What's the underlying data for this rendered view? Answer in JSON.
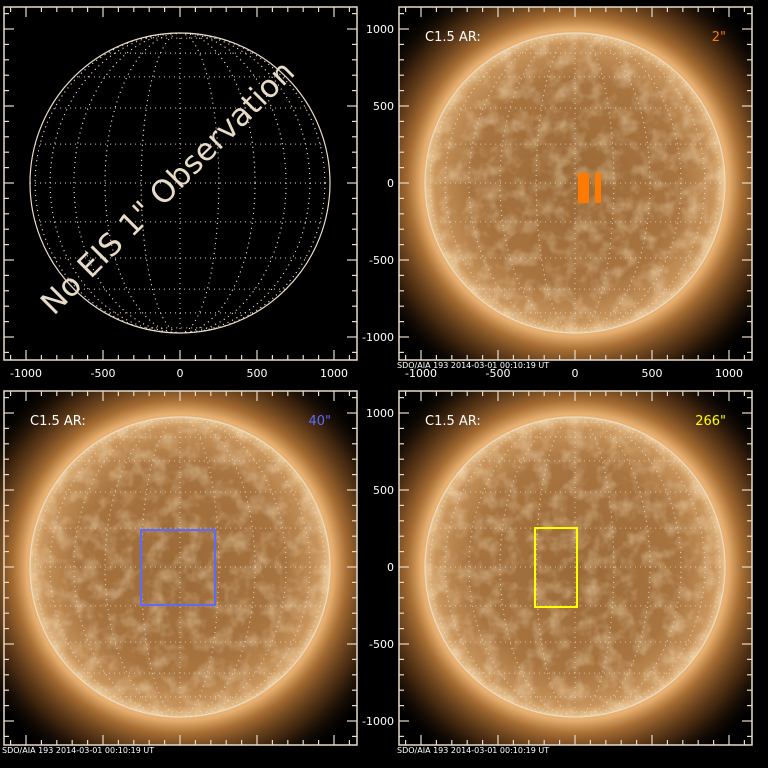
{
  "figure": {
    "frame_color": "#e8dcc8",
    "axis": {
      "x_ticks": [
        -1000,
        -500,
        0,
        500,
        1000
      ],
      "y_ticks": [
        1000,
        500,
        0,
        -500,
        -1000
      ],
      "minor_step": 100
    },
    "panels": [
      {
        "id": "top-left",
        "has_image": false,
        "overlay_text": "No EIS 1\" Observation",
        "show_x_labels": true,
        "show_y_labels": false
      },
      {
        "id": "top-right",
        "has_image": true,
        "label": "C1.5 AR:",
        "resolution": "2\"",
        "resolution_color": "#ff7a00",
        "box_style": "filled-bars",
        "footer": "SDO/AIA 193  2014-03-01 00:10:19 UT",
        "show_x_labels": true,
        "show_y_labels": true
      },
      {
        "id": "bottom-left",
        "has_image": true,
        "label": "C1.5 AR:",
        "resolution": "40\"",
        "resolution_color": "#5a6cff",
        "box_style": "outline",
        "footer": "SDO/AIA 193  2014-03-01 00:10:19 UT",
        "show_x_labels": false,
        "show_y_labels": false
      },
      {
        "id": "bottom-right",
        "has_image": true,
        "label": "C1.5 AR:",
        "resolution": "266\"",
        "resolution_color": "#ffff00",
        "box_style": "outline",
        "footer": "SDO/AIA 193  2014-03-01 00:10:19 UT",
        "show_x_labels": false,
        "show_y_labels": true
      }
    ]
  }
}
